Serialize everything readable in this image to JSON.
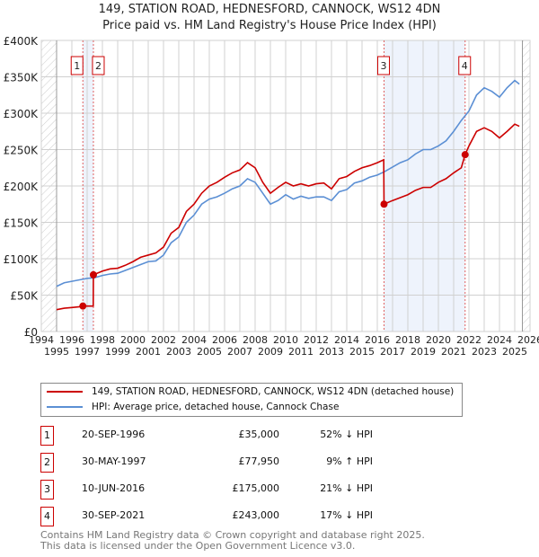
{
  "chart_data": {
    "type": "line",
    "title": "149, STATION ROAD, HEDNESFORD, CANNOCK, WS12 4DN",
    "subtitle": "Price paid vs. HM Land Registry's House Price Index (HPI)",
    "xlim": [
      1994,
      2026
    ],
    "ylim": [
      0,
      400000
    ],
    "y_ticks": [
      {
        "v": 0,
        "l": "£0"
      },
      {
        "v": 50000,
        "l": "£50K"
      },
      {
        "v": 100000,
        "l": "£100K"
      },
      {
        "v": 150000,
        "l": "£150K"
      },
      {
        "v": 200000,
        "l": "£200K"
      },
      {
        "v": 250000,
        "l": "£250K"
      },
      {
        "v": 300000,
        "l": "£300K"
      },
      {
        "v": 350000,
        "l": "£350K"
      },
      {
        "v": 400000,
        "l": "£400K"
      }
    ],
    "x_ticks": [
      "1994",
      "1995",
      "1996",
      "1997",
      "1998",
      "1999",
      "2000",
      "2001",
      "2002",
      "2003",
      "2004",
      "2005",
      "2006",
      "2007",
      "2008",
      "2009",
      "2010",
      "2011",
      "2012",
      "2013",
      "2014",
      "2015",
      "2016",
      "2017",
      "2018",
      "2019",
      "2020",
      "2021",
      "2022",
      "2023",
      "2024",
      "2025",
      "2026"
    ],
    "grid": true,
    "series": [
      {
        "name": "149, STATION ROAD, HEDNESFORD, CANNOCK, WS12 4DN (detached house)",
        "color": "#cc0000",
        "x": [
          1995,
          1995.5,
          1996,
          1996.5,
          1996.72,
          1997,
          1997.4,
          1997.41,
          1998,
          1998.5,
          1999,
          1999.5,
          2000,
          2000.5,
          2001,
          2001.5,
          2002,
          2002.5,
          2003,
          2003.5,
          2004,
          2004.5,
          2005,
          2005.5,
          2006,
          2006.5,
          2007,
          2007.5,
          2008,
          2008.5,
          2009,
          2009.5,
          2010,
          2010.5,
          2011,
          2011.5,
          2012,
          2012.5,
          2013,
          2013.5,
          2014,
          2014.5,
          2015,
          2015.5,
          2016,
          2016.42,
          2016.44,
          2017,
          2017.5,
          2018,
          2018.5,
          2019,
          2019.5,
          2020,
          2020.5,
          2021,
          2021.5,
          2021.75,
          2022,
          2022.5,
          2023,
          2023.5,
          2024,
          2024.5,
          2025,
          2025.3
        ],
        "y": [
          30000,
          32000,
          33000,
          34000,
          35000,
          35000,
          35000,
          77950,
          83000,
          86000,
          87000,
          91000,
          96000,
          102000,
          105000,
          108000,
          116000,
          135000,
          143000,
          165000,
          175000,
          190000,
          200000,
          205000,
          212000,
          218000,
          222000,
          232000,
          225000,
          205000,
          190000,
          198000,
          205000,
          200000,
          203000,
          200000,
          203000,
          204000,
          196000,
          210000,
          213000,
          220000,
          225000,
          228000,
          232000,
          236000,
          175000,
          180000,
          184000,
          188000,
          194000,
          198000,
          198000,
          205000,
          210000,
          218000,
          225000,
          243000,
          255000,
          275000,
          280000,
          275000,
          266000,
          275000,
          285000,
          282000
        ]
      },
      {
        "name": "HPI: Average price, detached house, Cannock Chase",
        "color": "#5b8fd4",
        "x": [
          1995,
          1995.5,
          1996,
          1996.5,
          1997,
          1997.5,
          1998,
          1998.5,
          1999,
          1999.5,
          2000,
          2000.5,
          2001,
          2001.5,
          2002,
          2002.5,
          2003,
          2003.5,
          2004,
          2004.5,
          2005,
          2005.5,
          2006,
          2006.5,
          2007,
          2007.5,
          2008,
          2008.5,
          2009,
          2009.5,
          2010,
          2010.5,
          2011,
          2011.5,
          2012,
          2012.5,
          2013,
          2013.5,
          2014,
          2014.5,
          2015,
          2015.5,
          2016,
          2016.5,
          2017,
          2017.5,
          2018,
          2018.5,
          2019,
          2019.5,
          2020,
          2020.5,
          2021,
          2021.5,
          2022,
          2022.5,
          2023,
          2023.5,
          2024,
          2024.5,
          2025,
          2025.3
        ],
        "y": [
          62000,
          67000,
          69000,
          71000,
          73000,
          74000,
          77000,
          79000,
          80000,
          84000,
          88000,
          92000,
          96000,
          97000,
          105000,
          122000,
          130000,
          150000,
          160000,
          175000,
          182000,
          185000,
          190000,
          196000,
          200000,
          210000,
          205000,
          190000,
          175000,
          180000,
          188000,
          182000,
          186000,
          183000,
          185000,
          185000,
          180000,
          192000,
          195000,
          204000,
          207000,
          212000,
          215000,
          220000,
          226000,
          232000,
          236000,
          244000,
          250000,
          250000,
          255000,
          262000,
          275000,
          290000,
          303000,
          325000,
          335000,
          330000,
          322000,
          335000,
          345000,
          340000
        ]
      }
    ],
    "sales": [
      {
        "n": "1",
        "x": 1996.72,
        "y": 35000,
        "date": "20-SEP-1996",
        "price": "£35,000",
        "hpi": "52% ↓ HPI"
      },
      {
        "n": "2",
        "x": 1997.41,
        "y": 77950,
        "date": "30-MAY-1997",
        "price": "£77,950",
        "hpi": "9% ↑ HPI"
      },
      {
        "n": "3",
        "x": 2016.44,
        "y": 175000,
        "date": "10-JUN-2016",
        "price": "£175,000",
        "hpi": "21% ↓ HPI"
      },
      {
        "n": "4",
        "x": 2021.75,
        "y": 243000,
        "date": "30-SEP-2021",
        "price": "£243,000",
        "hpi": "17% ↓ HPI"
      }
    ],
    "shaded": [
      [
        1996.72,
        1997.41
      ],
      [
        2016.44,
        2021.75
      ]
    ],
    "hatched": [
      [
        1994,
        1995
      ],
      [
        2025.5,
        2026
      ]
    ]
  },
  "footer": {
    "line1": "Contains HM Land Registry data © Crown copyright and database right 2025.",
    "line2": "This data is licensed under the Open Government Licence v3.0."
  }
}
